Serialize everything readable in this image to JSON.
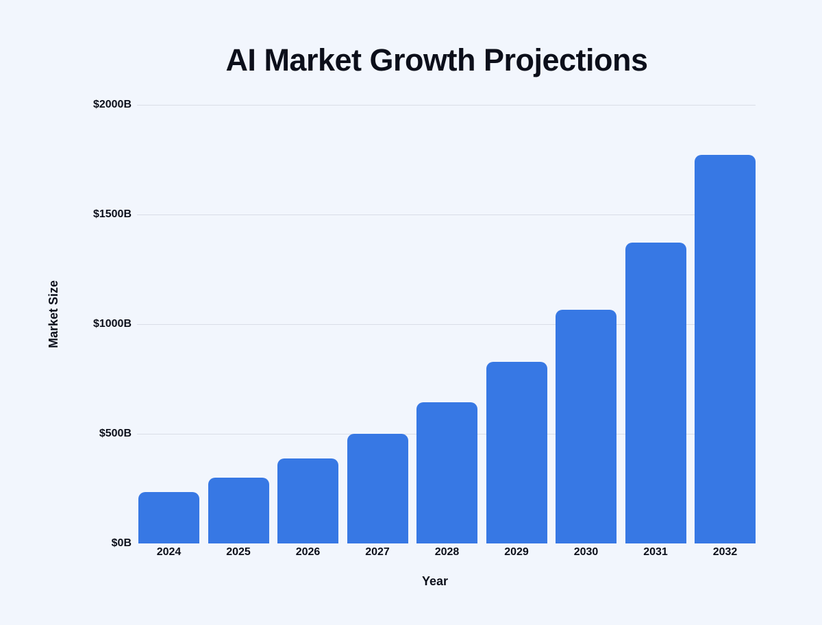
{
  "chart_data": {
    "type": "bar",
    "title": "AI Market Growth Projections",
    "xlabel": "Year",
    "ylabel": "Market Size",
    "categories": [
      "2024",
      "2025",
      "2026",
      "2027",
      "2028",
      "2029",
      "2030",
      "2031",
      "2032"
    ],
    "values": [
      233,
      301,
      387,
      499,
      643,
      828,
      1066,
      1373,
      1772
    ],
    "value_unit": "USD billions",
    "ylim": [
      0,
      2000
    ],
    "y_ticks": [
      {
        "label": "$0B",
        "value": 0
      },
      {
        "label": "$500B",
        "value": 500
      },
      {
        "label": "$1000B",
        "value": 1000
      },
      {
        "label": "$1500B",
        "value": 1500
      },
      {
        "label": "$2000B",
        "value": 2000
      }
    ],
    "grid": true,
    "legend": null,
    "bar_color": "#3778e4",
    "background_color": "#f2f6fd",
    "gridline_color": "#d9dde7",
    "text_color": "#0c0f1a"
  }
}
